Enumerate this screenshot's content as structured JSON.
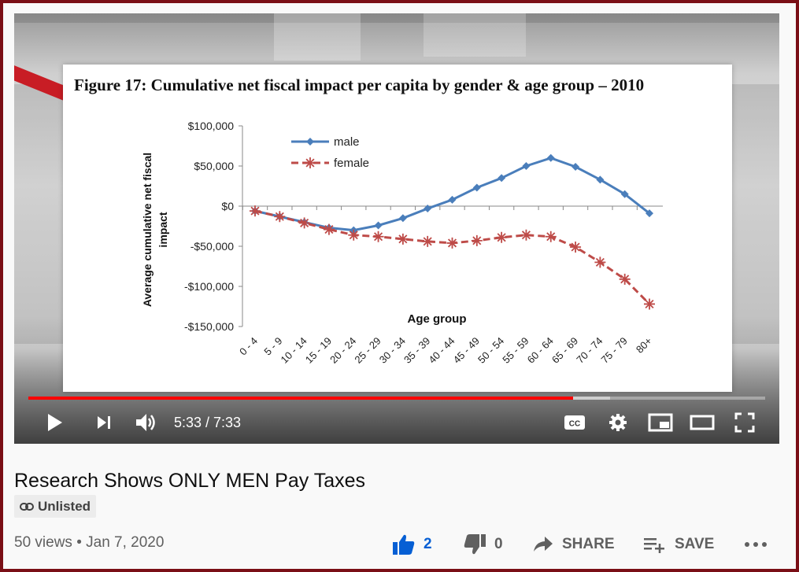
{
  "player": {
    "current_time": "5:33",
    "duration": "7:33",
    "time_display": "5:33 / 7:33",
    "progress_fraction": 0.739,
    "buffered_fraction": 0.79,
    "cc_label": "CC"
  },
  "slide": {
    "title": "Figure 17: Cumulative net fiscal impact per capita by gender & age group – 2010"
  },
  "chart_data": {
    "type": "line",
    "title": "Figure 17: Cumulative net fiscal impact per capita by gender & age group – 2010",
    "xlabel": "Age group",
    "ylabel": "Average cumulative net fiscal impact",
    "ylim": [
      -150000,
      100000
    ],
    "yticks": [
      100000,
      50000,
      0,
      -50000,
      -100000,
      -150000
    ],
    "ytick_labels": [
      "$100,000",
      "$50,000",
      "$0",
      "-$50,000",
      "-$100,000",
      "-$150,000"
    ],
    "categories": [
      "0 - 4",
      "5 - 9",
      "10 - 14",
      "15 - 19",
      "20 - 24",
      "25 - 29",
      "30 - 34",
      "35 - 39",
      "40 - 44",
      "45 - 49",
      "50 - 54",
      "55 - 59",
      "60 - 64",
      "65 - 69",
      "70 - 74",
      "75 - 79",
      "80+"
    ],
    "series": [
      {
        "name": "male",
        "color": "#4a7ebb",
        "marker": "diamond",
        "values": [
          -6000,
          -13000,
          -20000,
          -27000,
          -30000,
          -24000,
          -15000,
          -3000,
          8000,
          23000,
          35000,
          50000,
          60000,
          49000,
          33000,
          15000,
          -9000
        ]
      },
      {
        "name": "female",
        "color": "#be4b48",
        "marker": "star",
        "values": [
          -6000,
          -13000,
          -21000,
          -29000,
          -36000,
          -38000,
          -41000,
          -44000,
          -46000,
          -43000,
          -39000,
          -36000,
          -38000,
          -51000,
          -70000,
          -91000,
          -122000
        ]
      }
    ],
    "legend_position": "top-left",
    "grid": false
  },
  "video": {
    "title": "Research Shows ONLY MEN Pay Taxes",
    "badge": "Unlisted",
    "views": "50 views",
    "separator": "•",
    "date": "Jan 7, 2020"
  },
  "actions": {
    "like_count": "2",
    "dislike_count": "0",
    "share_label": "SHARE",
    "save_label": "SAVE"
  },
  "colors": {
    "border": "#7a0f16",
    "progress": "#ff0000",
    "like_active": "#065fd4",
    "male_series": "#4a7ebb",
    "female_series": "#be4b48"
  }
}
